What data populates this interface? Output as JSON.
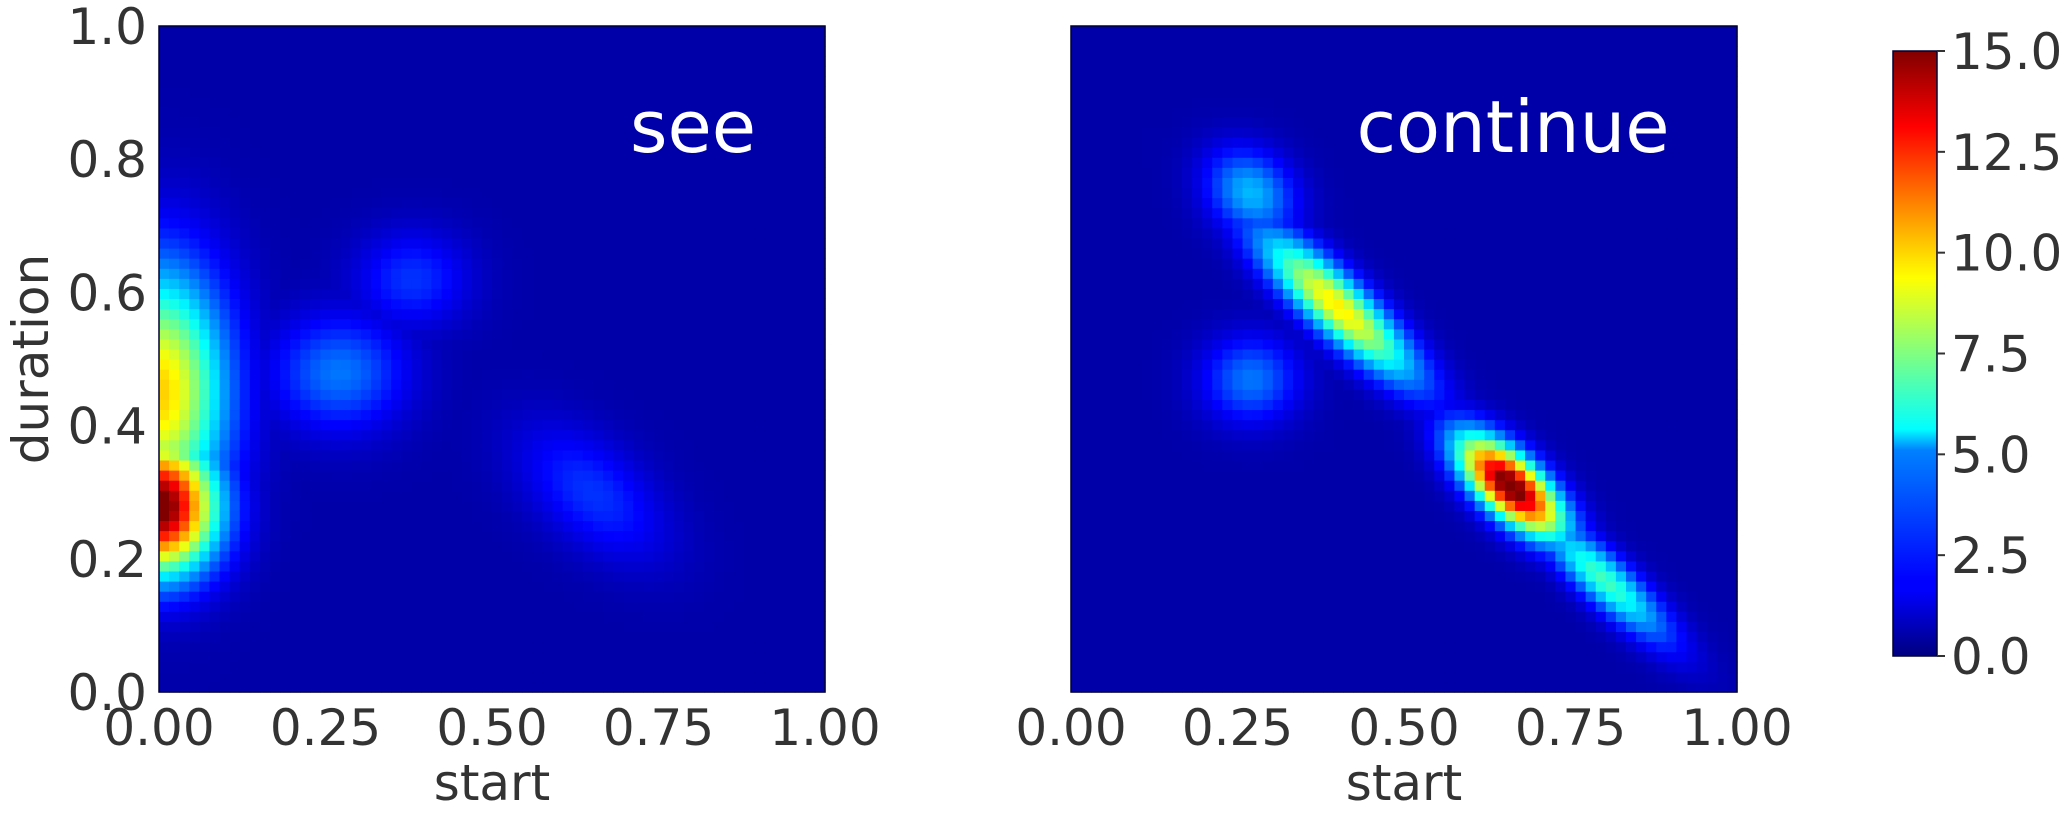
{
  "chart_data": [
    {
      "type": "heatmap",
      "panel_label": "see",
      "xlabel": "start",
      "ylabel": "duration",
      "xlim": [
        0,
        1
      ],
      "ylim": [
        0,
        1
      ],
      "xticks": [
        "0.00",
        "0.25",
        "0.50",
        "0.75",
        "1.00"
      ],
      "yticks": [
        "0.0",
        "0.2",
        "0.4",
        "0.6",
        "0.8",
        "1.0"
      ],
      "peaks": [
        {
          "start": 0.0,
          "duration": 0.28,
          "value": 15.0
        },
        {
          "start": 0.0,
          "duration": 0.45,
          "value": 9.5
        },
        {
          "start": 0.27,
          "duration": 0.48,
          "value": 3.0
        },
        {
          "start": 0.38,
          "duration": 0.62,
          "value": 2.0
        },
        {
          "start": 0.65,
          "duration": 0.3,
          "value": 2.0
        }
      ]
    },
    {
      "type": "heatmap",
      "panel_label": "continue",
      "xlabel": "start",
      "ylabel": "",
      "xlim": [
        0,
        1
      ],
      "ylim": [
        0,
        1
      ],
      "xticks": [
        "0.00",
        "0.25",
        "0.50",
        "0.75",
        "1.00"
      ],
      "yticks": [],
      "peaks": [
        {
          "start": 0.66,
          "duration": 0.31,
          "value": 15.0
        },
        {
          "start": 0.4,
          "duration": 0.58,
          "value": 9.0
        },
        {
          "start": 0.8,
          "duration": 0.17,
          "value": 6.0
        },
        {
          "start": 0.27,
          "duration": 0.75,
          "value": 4.0
        },
        {
          "start": 0.27,
          "duration": 0.47,
          "value": 3.0
        }
      ]
    }
  ],
  "colorbar": {
    "colormap": "jet",
    "min": 0.0,
    "max": 15.0,
    "ticks": [
      "0.0",
      "2.5",
      "5.0",
      "7.5",
      "10.0",
      "12.5",
      "15.0"
    ]
  }
}
